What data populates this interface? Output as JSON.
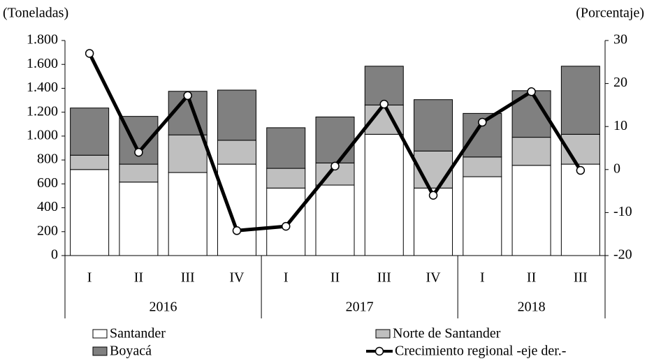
{
  "chart_data": {
    "type": "bar",
    "stacked": true,
    "y_label": "(Toneladas)",
    "y2_label": "(Porcentaje)",
    "groups": [
      {
        "label": "2016",
        "categories": [
          "I",
          "II",
          "III",
          "IV"
        ]
      },
      {
        "label": "2017",
        "categories": [
          "I",
          "II",
          "III",
          "IV"
        ]
      },
      {
        "label": "2018",
        "categories": [
          "I",
          "II",
          "III"
        ]
      }
    ],
    "series": [
      {
        "name": "Santander",
        "color": "#ffffff",
        "values": [
          720,
          615,
          695,
          765,
          565,
          590,
          1015,
          565,
          660,
          755,
          765
        ]
      },
      {
        "name": "Norte de Santander",
        "color": "#bfbfbf",
        "values": [
          120,
          150,
          315,
          200,
          165,
          185,
          245,
          310,
          165,
          235,
          250
        ]
      },
      {
        "name": "Boyacá",
        "color": "#808080",
        "values": [
          395,
          400,
          365,
          420,
          340,
          385,
          325,
          430,
          365,
          390,
          570
        ]
      },
      {
        "name": "Crecimiento regional -eje der.-",
        "type": "line",
        "axis": "y2",
        "color": "#000000",
        "values": [
          27,
          4,
          17.2,
          -14.2,
          -13.2,
          0.8,
          15.2,
          -6,
          11,
          18.1,
          -0.2
        ]
      }
    ],
    "ylim": [
      0,
      1800
    ],
    "yticks": [
      0,
      200,
      400,
      600,
      800,
      {
        "value": 1000,
        "label": "1.000"
      },
      {
        "value": 1200,
        "label": "1.200"
      },
      {
        "value": 1400,
        "label": "1.400"
      },
      {
        "value": 1600,
        "label": "1.600"
      },
      {
        "value": 1800,
        "label": "1.800"
      }
    ],
    "y2lim": [
      -20,
      30
    ],
    "y2ticks": [
      -20,
      -10,
      0,
      10,
      20,
      30
    ]
  }
}
